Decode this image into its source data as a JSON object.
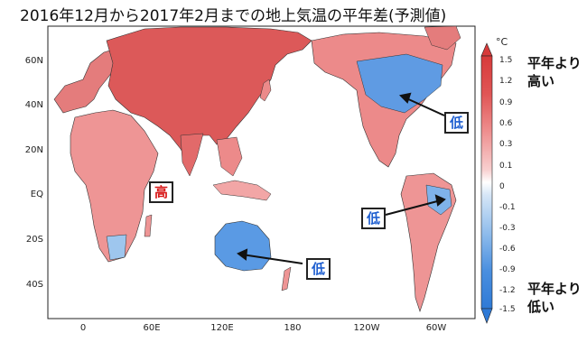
{
  "title": "2016年12月から2017年2月までの地上気温の平年差(予測値)",
  "map": {
    "lat_labels": [
      "60N",
      "40N",
      "20N",
      "EQ",
      "20S",
      "40S"
    ],
    "lon_labels": [
      "0",
      "60E",
      "120E",
      "180",
      "120W",
      "60W"
    ]
  },
  "legend": {
    "unit": "°C",
    "ticks": [
      "1.5",
      "1.2",
      "0.9",
      "0.6",
      "0.3",
      "0.1",
      "0",
      "-0.1",
      "-0.3",
      "-0.6",
      "-0.9",
      "-1.2",
      "-1.5"
    ],
    "high_label_1": "平年より",
    "high_label_2": "高い",
    "low_label_1": "平年より",
    "low_label_2": "低い",
    "colors": [
      "#d73a3a",
      "#e05555",
      "#e87272",
      "#ee8f8f",
      "#f3aeae",
      "#f8cfcf",
      "#ffffff",
      "#d6e6f7",
      "#b5d3f1",
      "#90bdec",
      "#6aa5e6",
      "#4a8fdf",
      "#2f7ad6"
    ]
  },
  "annotations": {
    "high_label": "高",
    "low_north_america": "低",
    "low_south_america": "低",
    "low_australia": "低"
  }
}
